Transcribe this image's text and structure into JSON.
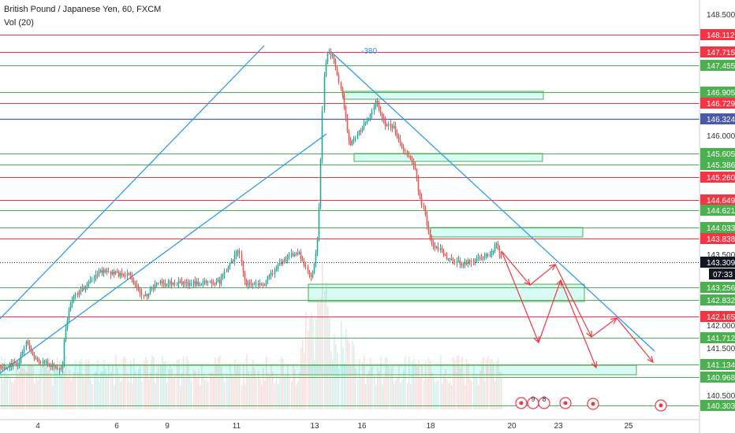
{
  "header": {
    "title": "British Pound / Japanese Yen, 60, FXCM",
    "volume_label": "Vol (20)"
  },
  "chart_data": {
    "type": "candlestick",
    "symbol": "British Pound / Japanese Yen",
    "timeframe": "60",
    "ylim": [
      140.1,
      149.0
    ],
    "x_ticks": [
      "4",
      "6",
      "9",
      "11",
      "13",
      "16",
      "18",
      "20",
      "23",
      "25"
    ],
    "y_ticks": [
      "148.500",
      "146.000",
      "143.500",
      "142.000",
      "141.500",
      "140.500"
    ],
    "current_price": "143.309",
    "countdown": "07:33",
    "annotation": "-380",
    "red_levels": [
      "148.112",
      "147.715",
      "146.729",
      "145.260",
      "144.649",
      "143.838",
      "142.165"
    ],
    "green_levels": [
      "147.455",
      "146.905",
      "145.605",
      "145.386",
      "144.621",
      "144.033",
      "143.256",
      "142.832",
      "141.712",
      "141.134",
      "140.968",
      "140.303"
    ],
    "blue_level": "146.324",
    "colors": {
      "up": "#26a69a",
      "down": "#ef5350",
      "red_line": "#f23645",
      "green_line": "#4caf50",
      "zone_fill": "#d9fbf6",
      "trend_line": "#2196f3",
      "blue_level": "#4a5aa8",
      "projection": "#f23645"
    },
    "event_icons": [
      {
        "label": "9"
      },
      {
        "label": "8"
      }
    ]
  }
}
